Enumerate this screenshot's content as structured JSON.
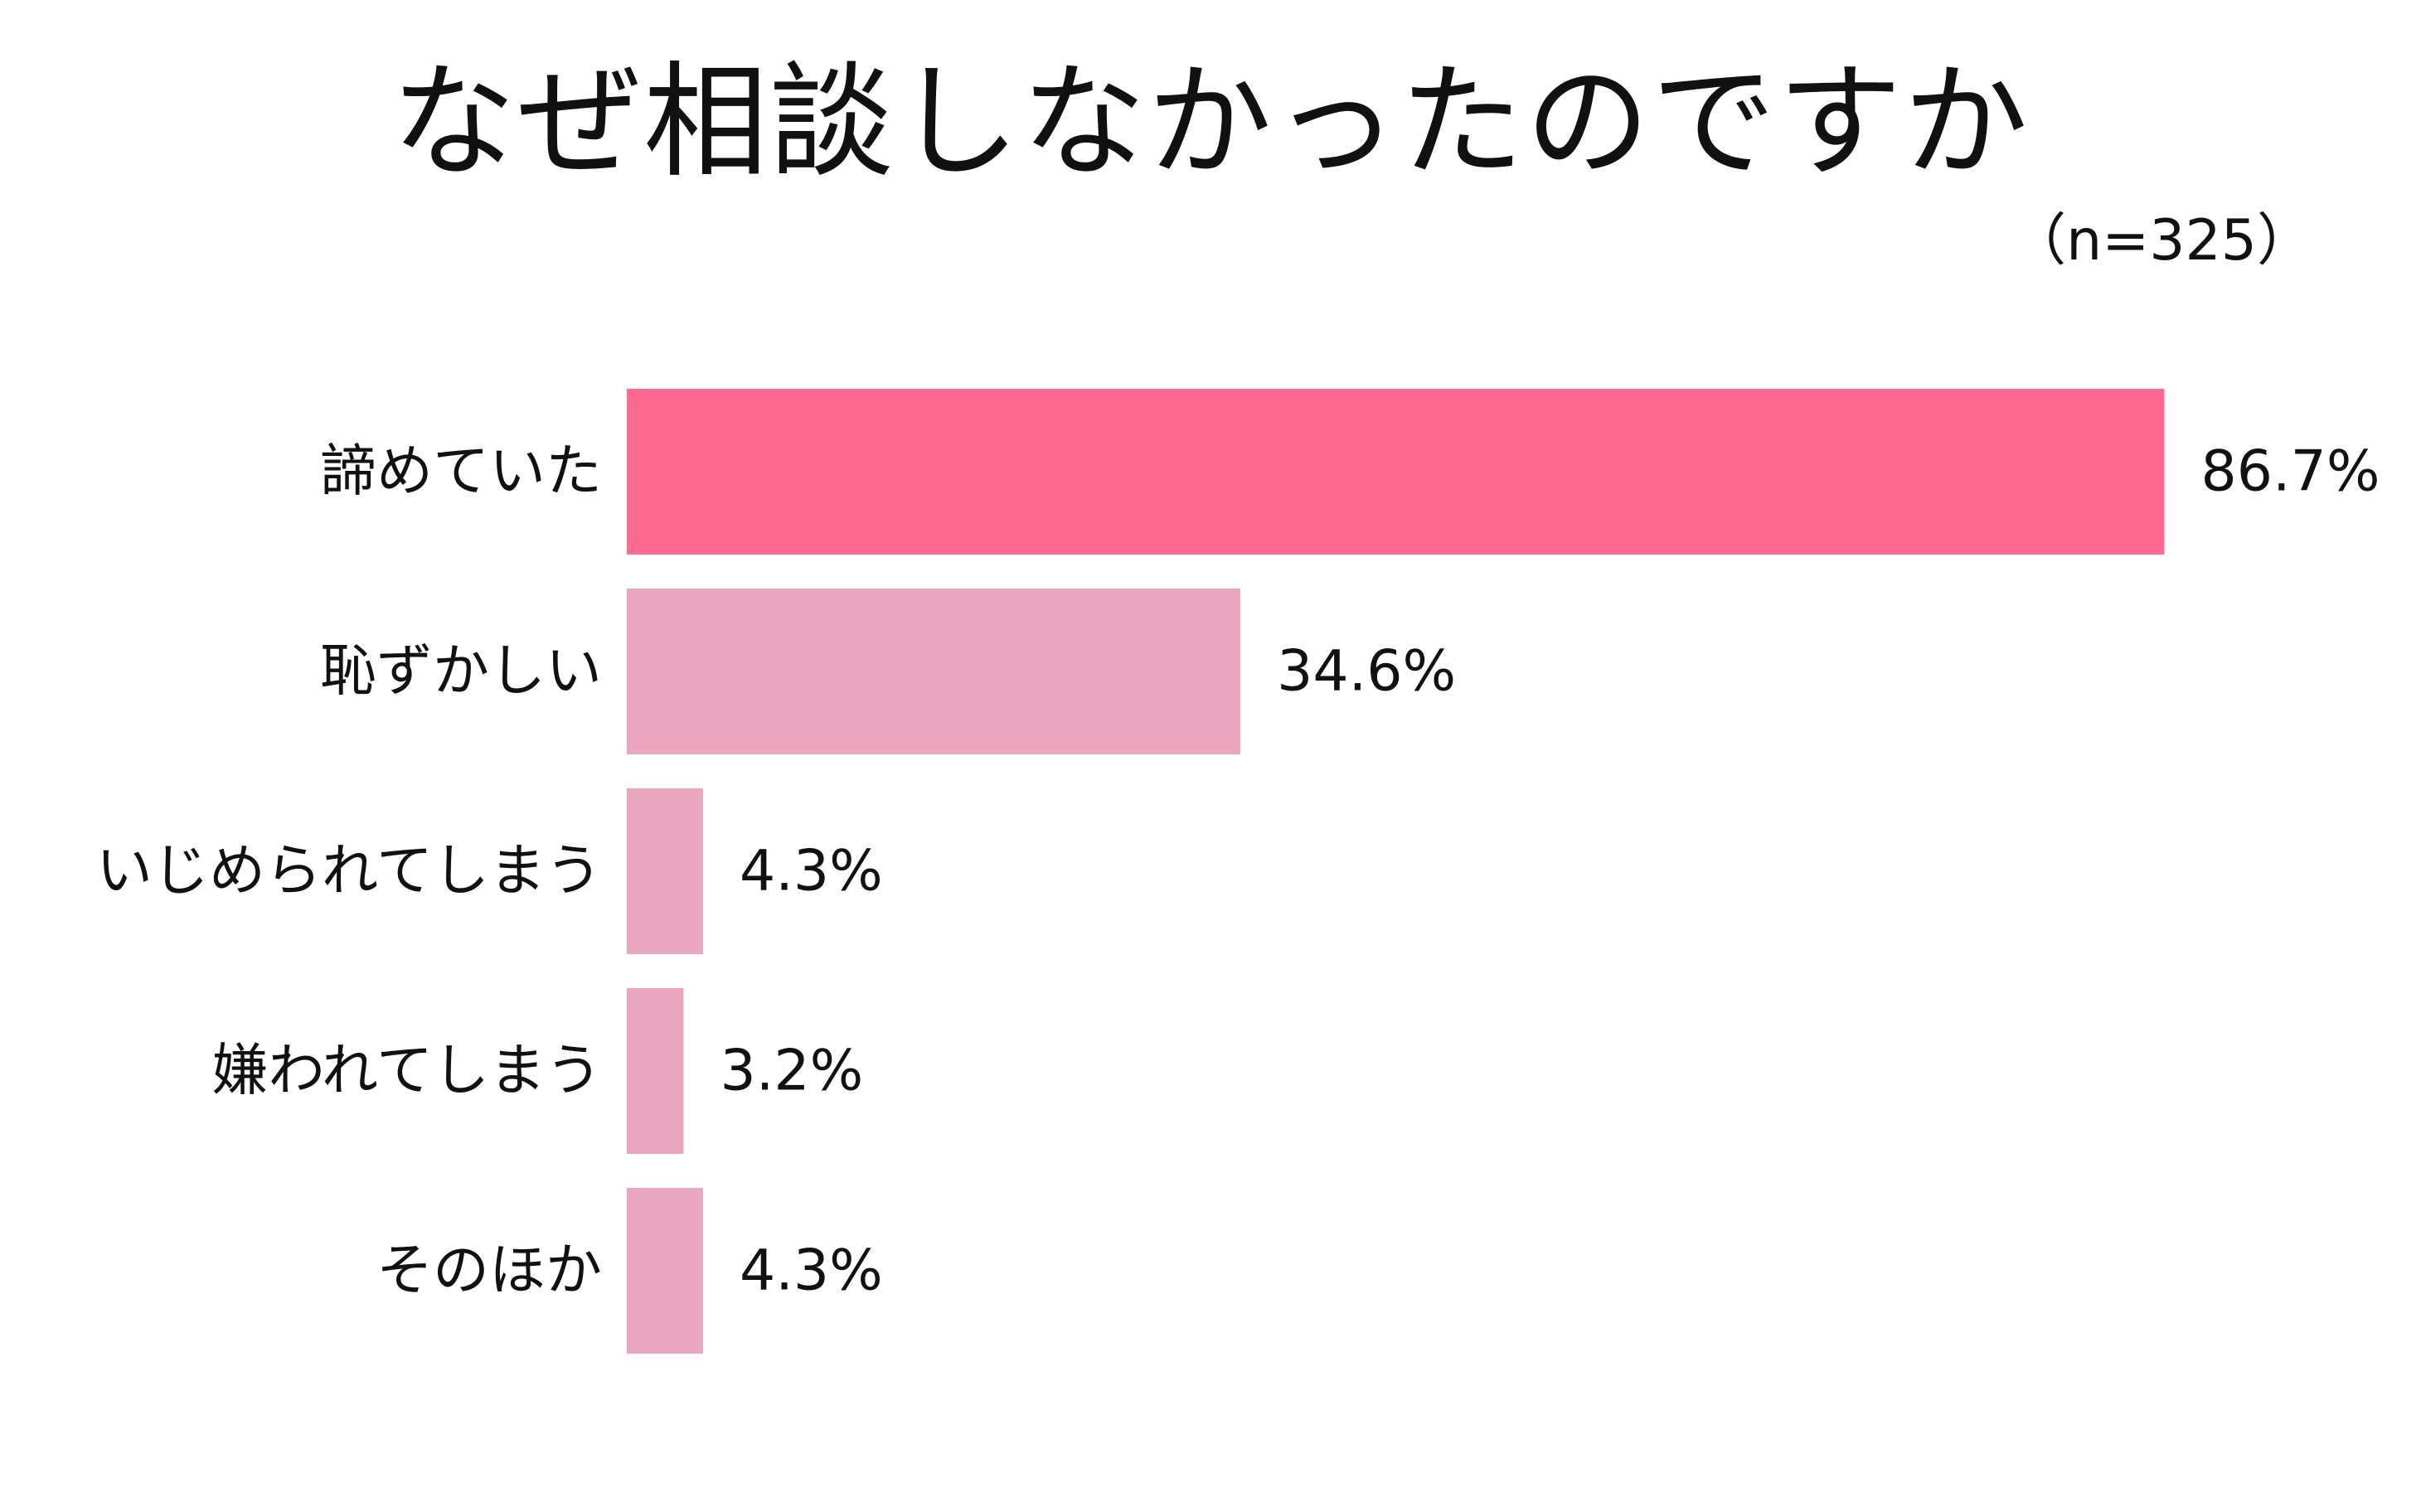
{
  "chart_data": {
    "type": "bar",
    "orientation": "horizontal",
    "title": "なぜ相談しなかったのですか",
    "subtitle": "（n=325）",
    "categories": [
      "諦めていた",
      "恥ずかしい",
      "いじめられてしまう",
      "嫌われてしまう",
      "そのほか"
    ],
    "values": [
      86.7,
      34.6,
      4.3,
      3.2,
      4.3
    ],
    "value_labels": [
      "86.7%",
      "34.6%",
      "4.3%",
      "3.2%",
      "4.3%"
    ],
    "xlim": [
      0,
      100
    ],
    "grid": false,
    "legend": "none",
    "colors": {
      "highlight": "#FF6A93",
      "default": "#EBA7BF"
    },
    "highlight_index": 0
  }
}
